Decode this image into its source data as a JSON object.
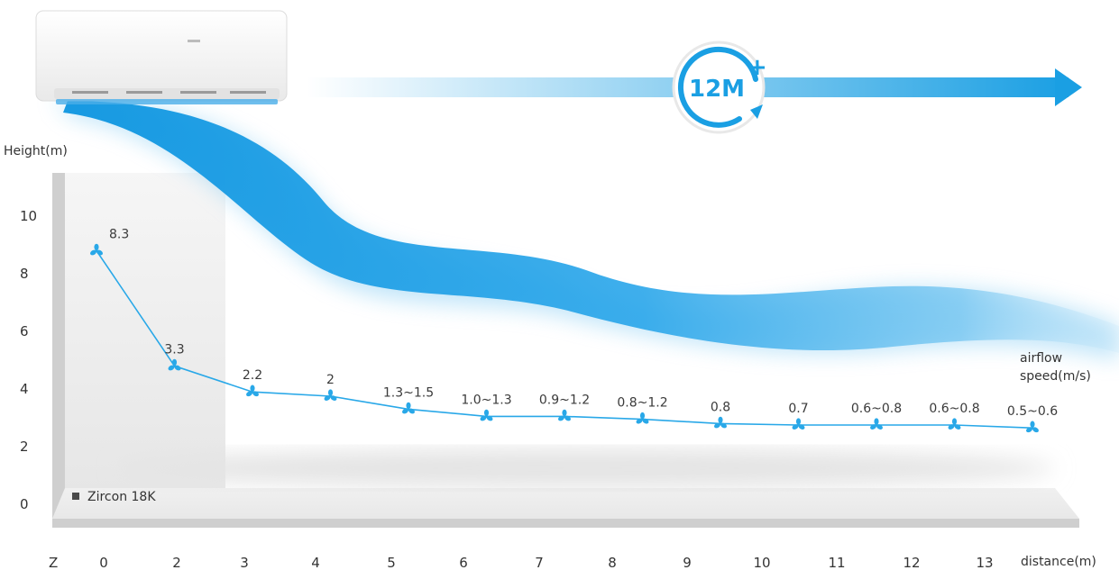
{
  "badge": {
    "text": "12M",
    "sup": "+"
  },
  "chart_data": {
    "type": "line",
    "ylabel": "Height(m)",
    "xlabel": "distance(m)",
    "series_label": "airflow speed(m/s)",
    "legend": "Zircon 18K",
    "x_axis_start_label": "Z",
    "xticks": [
      "0",
      "2",
      "3",
      "4",
      "5",
      "6",
      "7",
      "8",
      "9",
      "10",
      "11",
      "12",
      "13"
    ],
    "yticks": [
      "0",
      "2",
      "4",
      "6",
      "8",
      "10"
    ],
    "ylim": [
      0,
      11
    ],
    "points": [
      {
        "x": "0",
        "y": 8.8,
        "label": "8.3"
      },
      {
        "x": "2",
        "y": 4.8,
        "label": "3.3"
      },
      {
        "x": "3",
        "y": 3.9,
        "label": "2.2"
      },
      {
        "x": "4",
        "y": 3.75,
        "label": "2"
      },
      {
        "x": "5",
        "y": 3.3,
        "label": "1.3~1.5"
      },
      {
        "x": "6",
        "y": 3.05,
        "label": "1.0~1.3"
      },
      {
        "x": "7",
        "y": 3.05,
        "label": "0.9~1.2"
      },
      {
        "x": "8",
        "y": 2.95,
        "label": "0.8~1.2"
      },
      {
        "x": "9",
        "y": 2.8,
        "label": "0.8"
      },
      {
        "x": "10",
        "y": 2.75,
        "label": "0.7"
      },
      {
        "x": "11",
        "y": 2.75,
        "label": "0.6~0.8"
      },
      {
        "x": "12",
        "y": 2.75,
        "label": "0.6~0.8"
      },
      {
        "x": "13",
        "y": 2.65,
        "label": "0.5~0.6"
      }
    ],
    "colors": {
      "line": "#29a8e8",
      "airflow": "#1aa2e6",
      "arrow": "#1a9fe3",
      "floor": "#d9d9d9"
    }
  }
}
